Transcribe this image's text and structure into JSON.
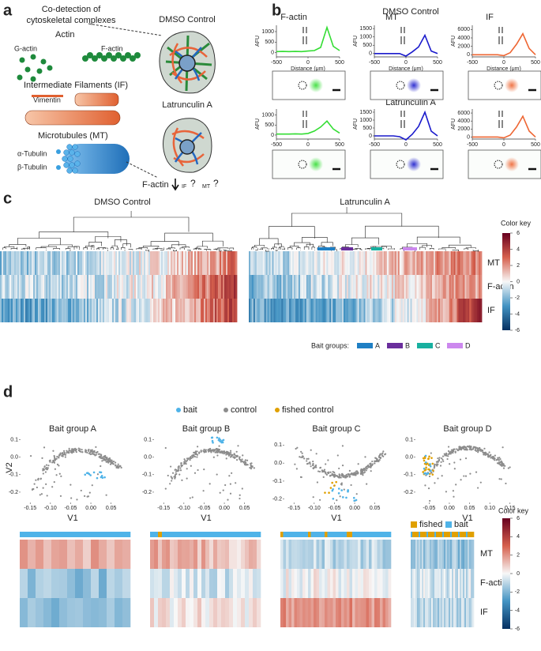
{
  "panel_labels": [
    "a",
    "b",
    "c",
    "d"
  ],
  "panel_a": {
    "title_lines": [
      "Co-detection of",
      "cytoskeletal complexes"
    ],
    "actin": "Actin",
    "g_actin": "G-actin",
    "f_actin": "F-actin",
    "if_label": "Intermediate Filaments (IF)",
    "vimentin": "Vimentin",
    "mt_label": "Microtubules (MT)",
    "alpha": "α-Tubulin",
    "beta": "β-Tubulin",
    "dmso": "DMSO Control",
    "lat": "Latrunculin A",
    "outcome": [
      "F-actin",
      "IF",
      "?",
      "MT",
      "?"
    ]
  },
  "panel_b": {
    "row_titles": [
      "DMSO Control",
      "Latrunculin A"
    ]
  },
  "chart_data": [
    {
      "type": "line",
      "title": "F-actin",
      "xlabel": "Distance (μm)",
      "ylabel": "AFU",
      "color": "#33dd33",
      "x": [
        -500,
        -400,
        -300,
        -200,
        -100,
        0,
        100,
        200,
        300,
        400,
        500
      ],
      "values": [
        50,
        60,
        50,
        60,
        50,
        80,
        100,
        250,
        1200,
        300,
        100
      ],
      "xlim": [
        -500,
        500
      ],
      "ylim": [
        -200,
        1300
      ],
      "xticks": [
        -500,
        0,
        500
      ],
      "yticks": [
        0,
        500,
        1000
      ]
    },
    {
      "type": "line",
      "title": "MT",
      "xlabel": "Distance (μm)",
      "ylabel": "AFU",
      "color": "#1a1acc",
      "x": [
        -500,
        -400,
        -300,
        -200,
        -100,
        0,
        100,
        200,
        300,
        400,
        500
      ],
      "values": [
        0,
        0,
        0,
        0,
        0,
        -150,
        100,
        400,
        1100,
        150,
        0
      ],
      "xlim": [
        -500,
        500
      ],
      "ylim": [
        -200,
        1700
      ],
      "xticks": [
        -500,
        0,
        500
      ],
      "yticks": [
        0,
        500,
        1000,
        1500
      ]
    },
    {
      "type": "line",
      "title": "IF",
      "xlabel": "Distance (μm)",
      "ylabel": "AFU",
      "color": "#ee6633",
      "x": [
        -500,
        -400,
        -300,
        -200,
        -100,
        0,
        100,
        200,
        300,
        400,
        500
      ],
      "values": [
        0,
        0,
        0,
        0,
        0,
        -200,
        500,
        2500,
        5000,
        1500,
        0
      ],
      "xlim": [
        -500,
        500
      ],
      "ylim": [
        -500,
        7000
      ],
      "xticks": [
        -500,
        0,
        500
      ],
      "yticks": [
        0,
        2000,
        4000,
        6000
      ]
    },
    {
      "type": "line",
      "ylabel": "AFU",
      "color": "#33dd33",
      "x": [
        -500,
        -400,
        -300,
        -200,
        -100,
        0,
        100,
        200,
        300,
        400,
        500
      ],
      "values": [
        50,
        50,
        50,
        60,
        50,
        80,
        200,
        400,
        700,
        300,
        100
      ],
      "xlim": [
        -500,
        500
      ],
      "ylim": [
        -200,
        1300
      ],
      "xticks": [
        -500,
        0,
        500
      ],
      "yticks": [
        0,
        500,
        1000
      ]
    },
    {
      "type": "line",
      "ylabel": "AFU",
      "color": "#1a1acc",
      "x": [
        -500,
        -400,
        -300,
        -200,
        -100,
        0,
        100,
        200,
        300,
        400,
        500
      ],
      "values": [
        0,
        0,
        0,
        0,
        -50,
        -250,
        100,
        600,
        1500,
        300,
        0
      ],
      "xlim": [
        -500,
        500
      ],
      "ylim": [
        -200,
        1700
      ],
      "xticks": [
        -500,
        0,
        500
      ],
      "yticks": [
        0,
        500,
        1000,
        1500
      ]
    },
    {
      "type": "line",
      "ylabel": "AFU",
      "color": "#ee6633",
      "x": [
        -500,
        -400,
        -300,
        -200,
        -100,
        0,
        100,
        200,
        300,
        400,
        500
      ],
      "values": [
        0,
        0,
        0,
        0,
        0,
        -200,
        500,
        2500,
        5200,
        1500,
        0
      ],
      "xlim": [
        -500,
        500
      ],
      "ylim": [
        -500,
        7000
      ],
      "xticks": [
        -500,
        0,
        500
      ],
      "yticks": [
        0,
        2000,
        4000,
        6000
      ]
    }
  ],
  "panel_c": {
    "titles": [
      "DMSO Control",
      "Latrunculin A"
    ],
    "rows": [
      "MT",
      "F-actin",
      "IF"
    ],
    "bait_label": "Bait groups:",
    "bait_groups": [
      {
        "name": "A",
        "color": "#1f7fc4"
      },
      {
        "name": "B",
        "color": "#6a2e9c"
      },
      {
        "name": "C",
        "color": "#18b0a0"
      },
      {
        "name": "D",
        "color": "#cc88ee"
      }
    ],
    "color_key": {
      "title": "Color key",
      "ticks": [
        6,
        4,
        2,
        0,
        -2,
        -4,
        -6
      ]
    }
  },
  "panel_d": {
    "legend": [
      {
        "name": "bait",
        "color": "#4fb3e8"
      },
      {
        "name": "control",
        "color": "#8c8c8c"
      },
      {
        "name": "fished control",
        "color": "#e0a000"
      }
    ],
    "xlabel": "V1",
    "ylabel": "V2",
    "plots": [
      {
        "title": "Bait group A",
        "color": "#1f8fd0",
        "xlim": [
          -0.17,
          0.08
        ],
        "ylim": [
          -0.25,
          0.12
        ],
        "xticks": [
          -0.15,
          {
            "value": -0.1,
            "label": "-0.10"
          },
          -0.05,
          {
            "value": 0,
            "label": "0.00"
          },
          0.05
        ],
        "yticks": [
          0.1,
          {
            "value": 0,
            "label": "0.0"
          },
          -0.1,
          -0.2
        ]
      },
      {
        "title": "Bait group B",
        "color": "#6a2e9c",
        "xlim": [
          -0.17,
          0.08
        ],
        "ylim": [
          -0.25,
          0.12
        ],
        "xticks": [
          -0.15,
          {
            "value": -0.1,
            "label": "-0.10"
          },
          -0.05,
          {
            "value": 0,
            "label": "0.00"
          },
          0.05
        ],
        "yticks": [
          0.1,
          {
            "value": 0,
            "label": "0.0"
          },
          -0.1,
          -0.2
        ]
      },
      {
        "title": "Bait group C",
        "color": "#18b0a0",
        "xlim": [
          -0.17,
          0.08
        ],
        "ylim": [
          -0.21,
          0.15
        ],
        "xticks": [
          -0.15,
          {
            "value": -0.1,
            "label": "-0.10"
          },
          -0.05,
          {
            "value": 0,
            "label": "0.00"
          },
          0.05
        ],
        "yticks": [
          0.1,
          {
            "value": 0,
            "label": "0.0"
          },
          -0.1,
          -0.2
        ]
      },
      {
        "title": "Bait group D",
        "color": "#cc88ee",
        "xlim": [
          -0.08,
          0.17
        ],
        "ylim": [
          -0.25,
          0.12
        ],
        "xticks": [
          -0.05,
          {
            "value": 0,
            "label": "0.00"
          },
          0.05,
          {
            "value": 0.1,
            "label": "0.10"
          },
          0.15
        ],
        "yticks": [
          0.1,
          {
            "value": 0,
            "label": "0.0"
          },
          -0.1,
          -0.2
        ]
      }
    ],
    "heatmap_legend": [
      {
        "name": "fished",
        "color": "#e0a000"
      },
      {
        "name": "bait",
        "color": "#4fb3e8"
      }
    ],
    "rows": [
      "MT",
      "F-actin",
      "IF"
    ],
    "color_key": {
      "title": "Color key",
      "ticks": [
        6,
        4,
        2,
        0,
        -2,
        -4,
        -6
      ]
    }
  }
}
